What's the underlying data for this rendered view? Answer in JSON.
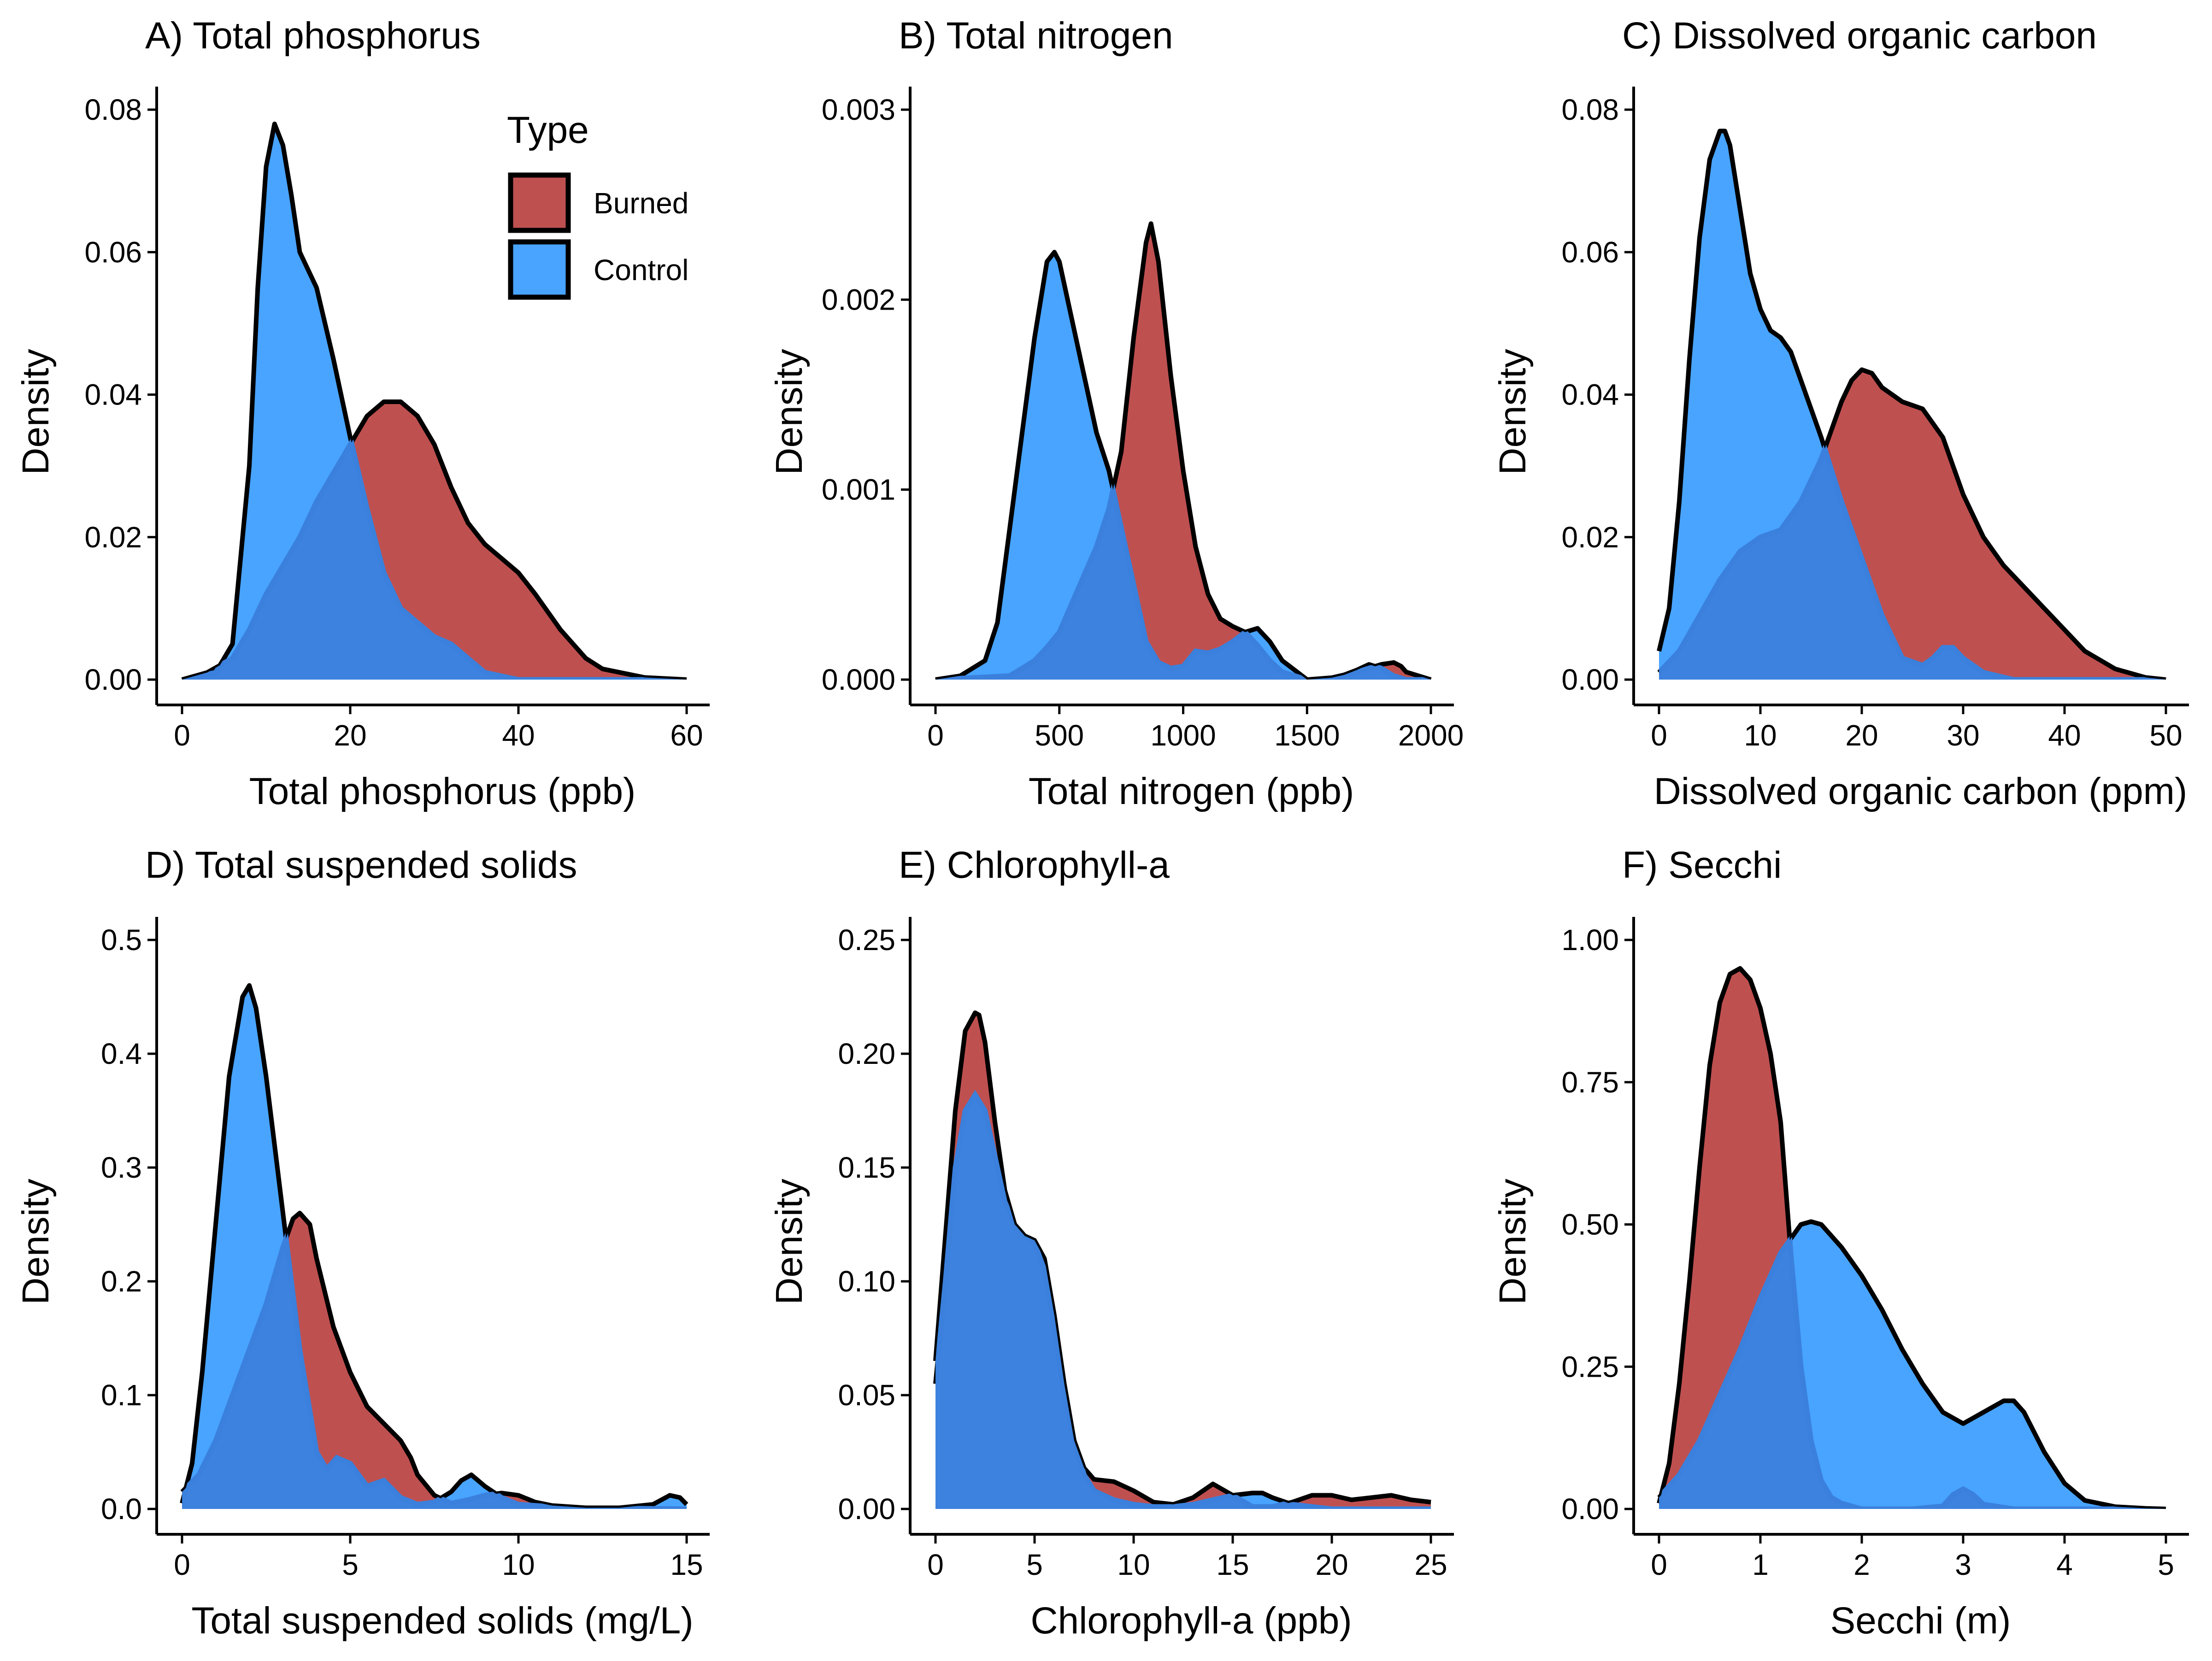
{
  "colors": {
    "Burned": "#bf5050",
    "Control": "#48a4ff",
    "overlap": "#3c82de",
    "stroke": "#000000"
  },
  "legend": {
    "title": "Type",
    "items": [
      {
        "label": "Burned",
        "color": "#bf5050"
      },
      {
        "label": "Control",
        "color": "#48a4ff"
      }
    ],
    "placement": "top-right of panel A"
  },
  "chart_data": [
    {
      "type": "area",
      "panel": "A",
      "title": "A) Total phosphorus",
      "xlabel": "Total phosphorus (ppb)",
      "ylabel": "Density",
      "xlim": [
        0,
        60
      ],
      "ylim": [
        0,
        0.08
      ],
      "xticks": [
        0,
        20,
        40,
        60
      ],
      "yticks": [
        0,
        0.02,
        0.04,
        0.06,
        0.08
      ],
      "xtick_labels": [
        "0",
        "20",
        "40",
        "60"
      ],
      "ytick_labels": [
        "0.00",
        "0.02",
        "0.04",
        "0.06",
        "0.08"
      ],
      "grid": false,
      "series": [
        {
          "name": "Control",
          "x": [
            0,
            4,
            6,
            8,
            9,
            10,
            11,
            12,
            13,
            14,
            16,
            18,
            20,
            22,
            24,
            26,
            28,
            30,
            32,
            34,
            36,
            40,
            45,
            50,
            55,
            60
          ],
          "y": [
            0,
            0.001,
            0.005,
            0.03,
            0.055,
            0.072,
            0.078,
            0.075,
            0.068,
            0.06,
            0.055,
            0.045,
            0.034,
            0.024,
            0.015,
            0.01,
            0.008,
            0.006,
            0.005,
            0.003,
            0.001,
            0,
            0,
            0,
            0,
            0
          ]
        },
        {
          "name": "Burned",
          "x": [
            0,
            3,
            6,
            8,
            10,
            12,
            14,
            16,
            18,
            20,
            22,
            24,
            26,
            28,
            30,
            32,
            34,
            36,
            38,
            40,
            42,
            45,
            48,
            50,
            55,
            60
          ],
          "y": [
            0,
            0.001,
            0.003,
            0.007,
            0.012,
            0.016,
            0.02,
            0.025,
            0.029,
            0.033,
            0.037,
            0.039,
            0.039,
            0.037,
            0.033,
            0.027,
            0.022,
            0.019,
            0.017,
            0.015,
            0.012,
            0.007,
            0.003,
            0.0015,
            0.0003,
            0
          ]
        }
      ]
    },
    {
      "type": "area",
      "panel": "B",
      "title": "B) Total nitrogen",
      "xlabel": "Total nitrogen (ppb)",
      "ylabel": "Density",
      "xlim": [
        0,
        2000
      ],
      "ylim": [
        0,
        0.003
      ],
      "xticks": [
        0,
        500,
        1000,
        1500,
        2000
      ],
      "yticks": [
        0,
        0.001,
        0.002,
        0.003
      ],
      "xtick_labels": [
        "0",
        "500",
        "1000",
        "1500",
        "2000"
      ],
      "ytick_labels": [
        "0.000",
        "0.001",
        "0.002",
        "0.003"
      ],
      "grid": false,
      "series": [
        {
          "name": "Control",
          "x": [
            0,
            100,
            200,
            250,
            300,
            350,
            400,
            450,
            480,
            500,
            550,
            600,
            650,
            700,
            750,
            800,
            850,
            900,
            950,
            1000,
            1050,
            1100,
            1150,
            1200,
            1250,
            1300,
            1350,
            1400,
            1500,
            1600,
            1700,
            1750,
            1800,
            1850,
            1900,
            2000
          ],
          "y": [
            0,
            2e-05,
            0.0001,
            0.0003,
            0.0008,
            0.0013,
            0.0018,
            0.0022,
            0.00225,
            0.0022,
            0.0019,
            0.0016,
            0.0013,
            0.0011,
            0.0008,
            0.0005,
            0.0002,
            9e-05,
            6e-05,
            7e-05,
            0.00015,
            0.00014,
            0.00016,
            0.0002,
            0.00025,
            0.00027,
            0.0002,
            0.0001,
            0,
            0,
            5e-05,
            8e-05,
            6e-05,
            2e-05,
            0,
            0
          ]
        },
        {
          "name": "Burned",
          "x": [
            0,
            300,
            400,
            450,
            500,
            550,
            600,
            650,
            700,
            750,
            800,
            850,
            870,
            900,
            950,
            1000,
            1050,
            1100,
            1150,
            1200,
            1250,
            1300,
            1350,
            1400,
            1500,
            1600,
            1700,
            1750,
            1800,
            1850,
            1880,
            1900,
            2000
          ],
          "y": [
            0,
            2e-05,
            0.0001,
            0.00017,
            0.00025,
            0.0004,
            0.00055,
            0.0007,
            0.0009,
            0.0012,
            0.0018,
            0.0023,
            0.0024,
            0.0022,
            0.0016,
            0.0011,
            0.0007,
            0.00045,
            0.00032,
            0.00028,
            0.00025,
            0.00018,
            0.0001,
            4e-05,
            0,
            1e-05,
            4e-05,
            6e-05,
            8e-05,
            9e-05,
            7e-05,
            4e-05,
            0
          ]
        }
      ]
    },
    {
      "type": "area",
      "panel": "C",
      "title": "C) Dissolved organic carbon",
      "xlabel": "Dissolved organic carbon (ppm)",
      "ylabel": "Density",
      "xlim": [
        0,
        50
      ],
      "ylim": [
        0,
        0.08
      ],
      "xticks": [
        0,
        10,
        20,
        30,
        40,
        50
      ],
      "yticks": [
        0,
        0.02,
        0.04,
        0.06,
        0.08
      ],
      "xtick_labels": [
        "0",
        "10",
        "20",
        "30",
        "40",
        "50"
      ],
      "ytick_labels": [
        "0.00",
        "0.02",
        "0.04",
        "0.06",
        "0.08"
      ],
      "grid": false,
      "series": [
        {
          "name": "Control",
          "x": [
            0,
            1,
            2,
            3,
            4,
            5,
            6,
            6.5,
            7,
            8,
            9,
            10,
            11,
            12,
            13,
            14,
            15,
            16,
            18,
            20,
            22,
            24,
            26,
            27,
            28,
            29,
            30,
            32,
            35,
            40,
            45,
            50
          ],
          "y": [
            0.004,
            0.01,
            0.025,
            0.045,
            0.062,
            0.073,
            0.077,
            0.077,
            0.075,
            0.066,
            0.057,
            0.052,
            0.049,
            0.048,
            0.046,
            0.042,
            0.038,
            0.034,
            0.025,
            0.017,
            0.009,
            0.003,
            0.002,
            0.003,
            0.0045,
            0.0045,
            0.003,
            0.001,
            0,
            0,
            0,
            0
          ]
        },
        {
          "name": "Burned",
          "x": [
            0,
            2,
            4,
            6,
            8,
            10,
            12,
            14,
            16,
            18,
            19,
            20,
            21,
            22,
            24,
            26,
            28,
            30,
            32,
            34,
            36,
            38,
            40,
            42,
            45,
            48,
            50
          ],
          "y": [
            0.001,
            0.004,
            0.009,
            0.014,
            0.018,
            0.02,
            0.021,
            0.025,
            0.031,
            0.039,
            0.042,
            0.0435,
            0.043,
            0.041,
            0.039,
            0.038,
            0.034,
            0.026,
            0.02,
            0.016,
            0.013,
            0.01,
            0.007,
            0.004,
            0.0015,
            0.0003,
            0
          ]
        }
      ]
    },
    {
      "type": "area",
      "panel": "D",
      "title": "D) Total suspended solids",
      "xlabel": "Total suspended solids (mg/L)",
      "ylabel": "Density",
      "xlim": [
        0,
        15
      ],
      "ylim": [
        0,
        0.5
      ],
      "xticks": [
        0,
        5,
        10,
        15
      ],
      "yticks": [
        0,
        0.1,
        0.2,
        0.3,
        0.4,
        0.5
      ],
      "xtick_labels": [
        "0",
        "5",
        "10",
        "15"
      ],
      "ytick_labels": [
        "0.0",
        "0.1",
        "0.2",
        "0.3",
        "0.4",
        "0.5"
      ],
      "grid": false,
      "series": [
        {
          "name": "Control",
          "x": [
            0,
            0.3,
            0.6,
            1.0,
            1.4,
            1.8,
            2.0,
            2.2,
            2.5,
            3.0,
            3.5,
            4.0,
            4.3,
            4.6,
            5.0,
            5.5,
            6.0,
            6.5,
            7.0,
            7.5,
            8.0,
            8.3,
            8.6,
            9.0,
            9.5,
            10,
            11,
            12,
            13,
            14,
            14.5,
            14.8,
            15
          ],
          "y": [
            0.005,
            0.04,
            0.12,
            0.25,
            0.38,
            0.45,
            0.46,
            0.44,
            0.38,
            0.26,
            0.14,
            0.05,
            0.035,
            0.045,
            0.04,
            0.02,
            0.025,
            0.01,
            0.004,
            0.006,
            0.015,
            0.025,
            0.03,
            0.02,
            0.01,
            0.004,
            0.002,
            0.001,
            0.001,
            0.004,
            0.012,
            0.01,
            0.004
          ]
        },
        {
          "name": "Burned",
          "x": [
            0,
            0.5,
            1.0,
            1.5,
            2.0,
            2.5,
            3.0,
            3.3,
            3.5,
            3.8,
            4.0,
            4.5,
            5.0,
            5.5,
            6.0,
            6.5,
            6.8,
            7.0,
            7.5,
            8.0,
            8.5,
            9.0,
            9.5,
            10,
            10.5,
            11,
            12,
            15
          ],
          "y": [
            0.015,
            0.03,
            0.06,
            0.1,
            0.14,
            0.18,
            0.23,
            0.255,
            0.26,
            0.25,
            0.22,
            0.16,
            0.12,
            0.09,
            0.075,
            0.06,
            0.045,
            0.03,
            0.012,
            0.005,
            0.008,
            0.012,
            0.014,
            0.012,
            0.006,
            0.003,
            0.001,
            0
          ]
        }
      ]
    },
    {
      "type": "area",
      "panel": "E",
      "title": "E) Chlorophyll-a",
      "xlabel": "Chlorophyll-a (ppb)",
      "ylabel": "Density",
      "xlim": [
        0,
        25
      ],
      "ylim": [
        0,
        0.25
      ],
      "xticks": [
        0,
        5,
        10,
        15,
        20,
        25
      ],
      "yticks": [
        0,
        0.05,
        0.1,
        0.15,
        0.2,
        0.25
      ],
      "xtick_labels": [
        "0",
        "5",
        "10",
        "15",
        "20",
        "25"
      ],
      "ytick_labels": [
        "0.00",
        "0.05",
        "0.10",
        "0.15",
        "0.20",
        "0.25"
      ],
      "grid": false,
      "series": [
        {
          "name": "Control",
          "x": [
            0,
            0.5,
            1.0,
            1.5,
            2.0,
            2.5,
            3.0,
            3.5,
            4.0,
            4.5,
            5.0,
            5.5,
            6.0,
            6.5,
            7.0,
            7.5,
            8.0,
            9.0,
            10,
            11,
            12,
            13,
            14,
            15,
            16,
            16.5,
            17,
            18,
            19,
            20,
            22,
            25
          ],
          "y": [
            0.055,
            0.1,
            0.15,
            0.175,
            0.182,
            0.175,
            0.155,
            0.135,
            0.125,
            0.12,
            0.118,
            0.11,
            0.085,
            0.055,
            0.03,
            0.015,
            0.008,
            0.004,
            0.002,
            0.001,
            0.001,
            0.002,
            0.004,
            0.006,
            0.007,
            0.007,
            0.005,
            0.002,
            0.001,
            0,
            0,
            0
          ]
        },
        {
          "name": "Burned",
          "x": [
            0,
            0.5,
            1.0,
            1.5,
            2.0,
            2.2,
            2.5,
            3.0,
            3.5,
            4.0,
            4.5,
            5.0,
            5.5,
            6.0,
            6.5,
            7.0,
            7.5,
            8.0,
            9.0,
            10,
            11,
            12,
            13,
            14,
            15,
            16,
            17,
            18,
            19,
            20,
            21,
            22,
            23,
            24,
            25
          ],
          "y": [
            0.065,
            0.12,
            0.175,
            0.21,
            0.218,
            0.217,
            0.205,
            0.17,
            0.14,
            0.125,
            0.12,
            0.117,
            0.105,
            0.08,
            0.05,
            0.03,
            0.018,
            0.013,
            0.012,
            0.008,
            0.003,
            0.002,
            0.005,
            0.011,
            0.006,
            0.001,
            0.001,
            0.003,
            0.006,
            0.006,
            0.004,
            0.005,
            0.006,
            0.004,
            0.003
          ]
        }
      ]
    },
    {
      "type": "area",
      "panel": "F",
      "title": "F) Secchi",
      "xlabel": "Secchi (m)",
      "ylabel": "Density",
      "xlim": [
        0,
        5
      ],
      "ylim": [
        0,
        1.0
      ],
      "xticks": [
        0,
        1,
        2,
        3,
        4,
        5
      ],
      "yticks": [
        0,
        0.25,
        0.5,
        0.75,
        1.0
      ],
      "xtick_labels": [
        "0",
        "1",
        "2",
        "3",
        "4",
        "5"
      ],
      "ytick_labels": [
        "0.00",
        "0.25",
        "0.50",
        "0.75",
        "1.00"
      ],
      "grid": false,
      "series": [
        {
          "name": "Burned",
          "x": [
            0,
            0.1,
            0.2,
            0.3,
            0.4,
            0.5,
            0.6,
            0.7,
            0.8,
            0.9,
            1.0,
            1.1,
            1.2,
            1.3,
            1.4,
            1.5,
            1.6,
            1.7,
            1.8,
            2.0,
            2.5,
            2.8,
            2.9,
            3.0,
            3.1,
            3.2,
            3.5,
            4.0,
            5.0
          ],
          "y": [
            0.01,
            0.08,
            0.22,
            0.4,
            0.6,
            0.78,
            0.89,
            0.94,
            0.95,
            0.93,
            0.88,
            0.8,
            0.68,
            0.45,
            0.25,
            0.12,
            0.05,
            0.02,
            0.01,
            0,
            0,
            0.005,
            0.025,
            0.035,
            0.025,
            0.008,
            0,
            0,
            0
          ]
        },
        {
          "name": "Control",
          "x": [
            0,
            0.2,
            0.4,
            0.6,
            0.8,
            1.0,
            1.2,
            1.4,
            1.5,
            1.6,
            1.8,
            2.0,
            2.2,
            2.4,
            2.6,
            2.8,
            3.0,
            3.2,
            3.4,
            3.5,
            3.6,
            3.8,
            4.0,
            4.2,
            4.5,
            4.8,
            5.0
          ],
          "y": [
            0.02,
            0.06,
            0.12,
            0.2,
            0.28,
            0.37,
            0.45,
            0.5,
            0.505,
            0.5,
            0.46,
            0.41,
            0.35,
            0.28,
            0.22,
            0.17,
            0.15,
            0.17,
            0.19,
            0.19,
            0.17,
            0.1,
            0.045,
            0.015,
            0.004,
            0.001,
            0
          ]
        }
      ]
    }
  ]
}
